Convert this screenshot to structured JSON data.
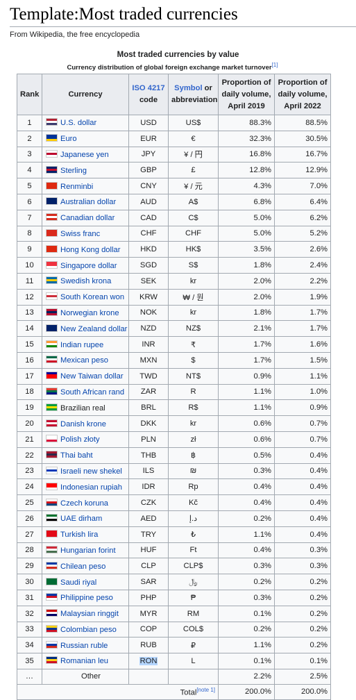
{
  "page_title": "Template:Most traded currencies",
  "tagline": "From Wikipedia, the free encyclopedia",
  "table_caption": "Most traded currencies by value",
  "table_subcaption": "Currency distribution of global foreign exchange market turnover",
  "subcaption_ref": "[1]",
  "headers": {
    "rank": "Rank",
    "currency": "Currency",
    "iso_link": "ISO 4217",
    "iso_rest": "code",
    "symbol_link": "Symbol",
    "symbol_rest": "or abbreviation",
    "p2019": "Proportion of daily volume, April 2019",
    "p2022": "Proportion of daily volume, April 2022"
  },
  "rows": [
    {
      "rank": "1",
      "currency": "U.S. dollar",
      "iso": "USD",
      "symbol": "US$",
      "p2019": "88.3%",
      "p2022": "88.5%",
      "flag": "us-flag-icon",
      "c": [
        "#b22234",
        "#ffffff",
        "#3c3b6e"
      ]
    },
    {
      "rank": "2",
      "currency": "Euro",
      "iso": "EUR",
      "symbol": "€",
      "p2019": "32.3%",
      "p2022": "30.5%",
      "flag": "eu-flag-icon",
      "c": [
        "#003399",
        "#003399",
        "#ffcc00"
      ]
    },
    {
      "rank": "3",
      "currency": "Japanese yen",
      "iso": "JPY",
      "symbol": "¥ / 円",
      "p2019": "16.8%",
      "p2022": "16.7%",
      "flag": "jp-flag-icon",
      "c": [
        "#ffffff",
        "#bc002d",
        "#ffffff"
      ]
    },
    {
      "rank": "4",
      "currency": "Sterling",
      "iso": "GBP",
      "symbol": "£",
      "p2019": "12.8%",
      "p2022": "12.9%",
      "flag": "gb-flag-icon",
      "c": [
        "#012169",
        "#c8102e",
        "#012169"
      ]
    },
    {
      "rank": "5",
      "currency": "Renminbi",
      "iso": "CNY",
      "symbol": "¥ / 元",
      "p2019": "4.3%",
      "p2022": "7.0%",
      "flag": "cn-flag-icon",
      "c": [
        "#de2910",
        "#de2910",
        "#de2910"
      ]
    },
    {
      "rank": "6",
      "currency": "Australian dollar",
      "iso": "AUD",
      "symbol": "A$",
      "p2019": "6.8%",
      "p2022": "6.4%",
      "flag": "au-flag-icon",
      "c": [
        "#012169",
        "#012169",
        "#012169"
      ]
    },
    {
      "rank": "7",
      "currency": "Canadian dollar",
      "iso": "CAD",
      "symbol": "C$",
      "p2019": "5.0%",
      "p2022": "6.2%",
      "flag": "ca-flag-icon",
      "c": [
        "#d52b1e",
        "#ffffff",
        "#d52b1e"
      ]
    },
    {
      "rank": "8",
      "currency": "Swiss franc",
      "iso": "CHF",
      "symbol": "CHF",
      "p2019": "5.0%",
      "p2022": "5.2%",
      "flag": "ch-flag-icon",
      "c": [
        "#da291c",
        "#da291c",
        "#da291c"
      ]
    },
    {
      "rank": "9",
      "currency": "Hong Kong dollar",
      "iso": "HKD",
      "symbol": "HK$",
      "p2019": "3.5%",
      "p2022": "2.6%",
      "flag": "hk-flag-icon",
      "c": [
        "#de2910",
        "#de2910",
        "#de2910"
      ]
    },
    {
      "rank": "10",
      "currency": "Singapore dollar",
      "iso": "SGD",
      "symbol": "S$",
      "p2019": "1.8%",
      "p2022": "2.4%",
      "flag": "sg-flag-icon",
      "c": [
        "#ef3340",
        "#ef3340",
        "#ffffff"
      ]
    },
    {
      "rank": "11",
      "currency": "Swedish krona",
      "iso": "SEK",
      "symbol": "kr",
      "p2019": "2.0%",
      "p2022": "2.2%",
      "flag": "se-flag-icon",
      "c": [
        "#006aa7",
        "#fecc00",
        "#006aa7"
      ]
    },
    {
      "rank": "12",
      "currency": "South Korean won",
      "iso": "KRW",
      "symbol": "₩ / 원",
      "p2019": "2.0%",
      "p2022": "1.9%",
      "flag": "kr-flag-icon",
      "c": [
        "#ffffff",
        "#cd2e3a",
        "#ffffff"
      ]
    },
    {
      "rank": "13",
      "currency": "Norwegian krone",
      "iso": "NOK",
      "symbol": "kr",
      "p2019": "1.8%",
      "p2022": "1.7%",
      "flag": "no-flag-icon",
      "c": [
        "#ba0c2f",
        "#00205b",
        "#ba0c2f"
      ]
    },
    {
      "rank": "14",
      "currency": "New Zealand dollar",
      "iso": "NZD",
      "symbol": "NZ$",
      "p2019": "2.1%",
      "p2022": "1.7%",
      "flag": "nz-flag-icon",
      "c": [
        "#012169",
        "#012169",
        "#012169"
      ]
    },
    {
      "rank": "15",
      "currency": "Indian rupee",
      "iso": "INR",
      "symbol": "₹",
      "p2019": "1.7%",
      "p2022": "1.6%",
      "flag": "in-flag-icon",
      "c": [
        "#ff9933",
        "#ffffff",
        "#138808"
      ]
    },
    {
      "rank": "16",
      "currency": "Mexican peso",
      "iso": "MXN",
      "symbol": "$",
      "p2019": "1.7%",
      "p2022": "1.5%",
      "flag": "mx-flag-icon",
      "c": [
        "#006847",
        "#ffffff",
        "#ce1126"
      ]
    },
    {
      "rank": "17",
      "currency": "New Taiwan dollar",
      "iso": "TWD",
      "symbol": "NT$",
      "p2019": "0.9%",
      "p2022": "1.1%",
      "flag": "tw-flag-icon",
      "c": [
        "#000095",
        "#fe0000",
        "#fe0000"
      ]
    },
    {
      "rank": "18",
      "currency": "South African rand",
      "iso": "ZAR",
      "symbol": "R",
      "p2019": "1.1%",
      "p2022": "1.0%",
      "flag": "za-flag-icon",
      "c": [
        "#e03c31",
        "#007749",
        "#001489"
      ]
    },
    {
      "rank": "19",
      "currency": "Brazilian real",
      "iso": "BRL",
      "symbol": "R$",
      "p2019": "1.1%",
      "p2022": "0.9%",
      "flag": "br-flag-icon",
      "c": [
        "#009c3b",
        "#ffdf00",
        "#009c3b"
      ],
      "dark": true
    },
    {
      "rank": "20",
      "currency": "Danish krone",
      "iso": "DKK",
      "symbol": "kr",
      "p2019": "0.6%",
      "p2022": "0.7%",
      "flag": "dk-flag-icon",
      "c": [
        "#c60c30",
        "#ffffff",
        "#c60c30"
      ]
    },
    {
      "rank": "21",
      "currency": "Polish złoty",
      "iso": "PLN",
      "symbol": "zł",
      "p2019": "0.6%",
      "p2022": "0.7%",
      "flag": "pl-flag-icon",
      "c": [
        "#ffffff",
        "#ffffff",
        "#dc143c"
      ]
    },
    {
      "rank": "22",
      "currency": "Thai baht",
      "iso": "THB",
      "symbol": "฿",
      "p2019": "0.5%",
      "p2022": "0.4%",
      "flag": "th-flag-icon",
      "c": [
        "#a51931",
        "#2d2a4a",
        "#a51931"
      ]
    },
    {
      "rank": "23",
      "currency": "Israeli new shekel",
      "iso": "ILS",
      "symbol": "₪",
      "p2019": "0.3%",
      "p2022": "0.4%",
      "flag": "il-flag-icon",
      "c": [
        "#ffffff",
        "#0038b8",
        "#ffffff"
      ]
    },
    {
      "rank": "24",
      "currency": "Indonesian rupiah",
      "iso": "IDR",
      "symbol": "Rp",
      "p2019": "0.4%",
      "p2022": "0.4%",
      "flag": "id-flag-icon",
      "c": [
        "#ff0000",
        "#ff0000",
        "#ffffff"
      ]
    },
    {
      "rank": "25",
      "currency": "Czech koruna",
      "iso": "CZK",
      "symbol": "Kč",
      "p2019": "0.4%",
      "p2022": "0.4%",
      "flag": "cz-flag-icon",
      "c": [
        "#ffffff",
        "#d7141a",
        "#11457e"
      ]
    },
    {
      "rank": "26",
      "currency": "UAE dirham",
      "iso": "AED",
      "symbol": "د.إ",
      "p2019": "0.2%",
      "p2022": "0.4%",
      "flag": "ae-flag-icon",
      "c": [
        "#00732f",
        "#ffffff",
        "#000000"
      ]
    },
    {
      "rank": "27",
      "currency": "Turkish lira",
      "iso": "TRY",
      "symbol": "₺",
      "p2019": "1.1%",
      "p2022": "0.4%",
      "flag": "tr-flag-icon",
      "c": [
        "#e30a17",
        "#e30a17",
        "#e30a17"
      ]
    },
    {
      "rank": "28",
      "currency": "Hungarian forint",
      "iso": "HUF",
      "symbol": "Ft",
      "p2019": "0.4%",
      "p2022": "0.3%",
      "flag": "hu-flag-icon",
      "c": [
        "#ce2939",
        "#ffffff",
        "#477050"
      ]
    },
    {
      "rank": "29",
      "currency": "Chilean peso",
      "iso": "CLP",
      "symbol": "CLP$",
      "p2019": "0.3%",
      "p2022": "0.3%",
      "flag": "cl-flag-icon",
      "c": [
        "#0039a6",
        "#ffffff",
        "#d52b1e"
      ]
    },
    {
      "rank": "30",
      "currency": "Saudi riyal",
      "iso": "SAR",
      "symbol": "﷼",
      "p2019": "0.2%",
      "p2022": "0.2%",
      "flag": "sa-flag-icon",
      "c": [
        "#006c35",
        "#006c35",
        "#006c35"
      ]
    },
    {
      "rank": "31",
      "currency": "Philippine peso",
      "iso": "PHP",
      "symbol": "₱",
      "p2019": "0.3%",
      "p2022": "0.2%",
      "flag": "ph-flag-icon",
      "c": [
        "#0038a8",
        "#ce1126",
        "#ffffff"
      ]
    },
    {
      "rank": "32",
      "currency": "Malaysian ringgit",
      "iso": "MYR",
      "symbol": "RM",
      "p2019": "0.1%",
      "p2022": "0.2%",
      "flag": "my-flag-icon",
      "c": [
        "#cc0001",
        "#ffffff",
        "#010066"
      ]
    },
    {
      "rank": "33",
      "currency": "Colombian peso",
      "iso": "COP",
      "symbol": "COL$",
      "p2019": "0.2%",
      "p2022": "0.2%",
      "flag": "co-flag-icon",
      "c": [
        "#fcd116",
        "#003893",
        "#ce1126"
      ]
    },
    {
      "rank": "34",
      "currency": "Russian ruble",
      "iso": "RUB",
      "symbol": "₽",
      "p2019": "1.1%",
      "p2022": "0.2%",
      "flag": "ru-flag-icon",
      "c": [
        "#ffffff",
        "#0039a6",
        "#d52b1e"
      ]
    },
    {
      "rank": "35",
      "currency": "Romanian leu",
      "iso": "RON",
      "symbol": "L",
      "p2019": "0.1%",
      "p2022": "0.1%",
      "flag": "ro-flag-icon",
      "c": [
        "#002b7f",
        "#fcd116",
        "#ce1126"
      ],
      "highlight": true
    }
  ],
  "other": {
    "rank": "…",
    "label": "Other",
    "p2019": "2.2%",
    "p2022": "2.5%"
  },
  "total": {
    "label": "Total",
    "ref": "[note 1]",
    "p2019": "200.0%",
    "p2022": "200.0%"
  }
}
